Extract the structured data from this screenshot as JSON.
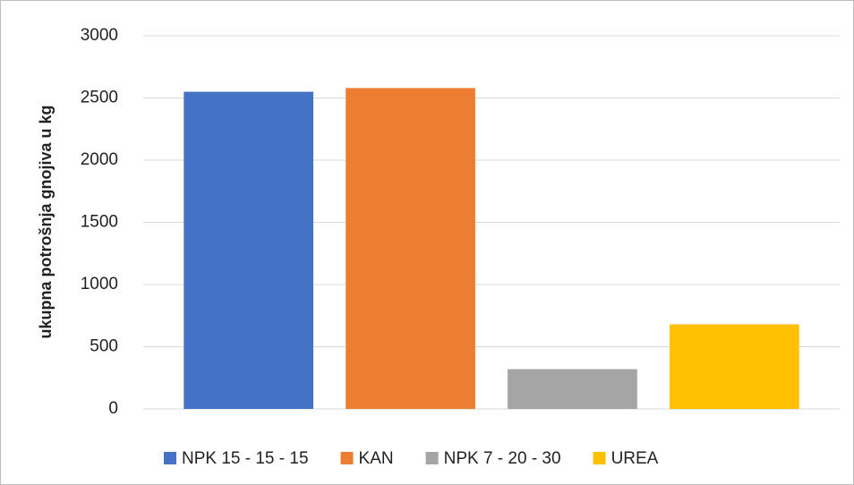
{
  "chart_data": {
    "type": "bar",
    "ylabel": "ukupna potrošnja gnojiva u kg",
    "categories": [
      null
    ],
    "series": [
      {
        "name": "NPK 15 - 15 - 15",
        "color": "#4472c4",
        "values": [
          2550
        ]
      },
      {
        "name": "KAN",
        "color": "#ed7d31",
        "values": [
          2580
        ]
      },
      {
        "name": "NPK 7 - 20 - 30",
        "color": "#a5a5a5",
        "values": [
          320
        ]
      },
      {
        "name": "UREA",
        "color": "#ffc000",
        "values": [
          680
        ]
      }
    ],
    "ylim": [
      0,
      3000
    ],
    "yticks": [
      0,
      500,
      1000,
      1500,
      2000,
      2500,
      3000
    ],
    "grid": true,
    "legend": "bottom"
  }
}
